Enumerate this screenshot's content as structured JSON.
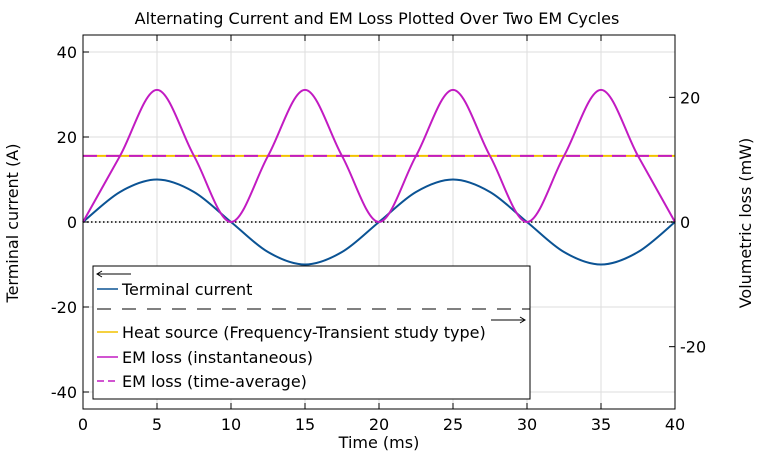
{
  "chart_data": {
    "type": "line",
    "title": "Alternating Current and EM Loss Plotted Over Two EM Cycles",
    "xlabel": "Time (ms)",
    "ylabel_left": "Terminal current (A)",
    "ylabel_right": "Volumetric loss (mW)",
    "xlim": [
      0,
      40
    ],
    "ylim_left": [
      -44,
      44
    ],
    "ylim_right": [
      -30,
      30
    ],
    "x_ticks": [
      0,
      5,
      10,
      15,
      20,
      25,
      30,
      35,
      40
    ],
    "y_ticks_left": [
      -40,
      -20,
      0,
      20,
      40
    ],
    "y_ticks_right": [
      -20,
      0,
      20
    ],
    "grid": true,
    "legend_position": "bottom-left",
    "series": [
      {
        "name": "Terminal current",
        "axis": "left",
        "color": "#0b5394",
        "style": "solid",
        "x": [
          0,
          2.5,
          5,
          7.5,
          10,
          12.5,
          15,
          17.5,
          20,
          22.5,
          25,
          27.5,
          30,
          32.5,
          35,
          37.5,
          40
        ],
        "values": [
          0,
          7.07,
          10,
          7.07,
          0,
          -7.07,
          -10,
          -7.07,
          0,
          7.07,
          10,
          7.07,
          0,
          -7.07,
          -10,
          -7.07,
          0
        ]
      },
      {
        "name": "Heat source (Frequency-Transient study type)",
        "axis": "right",
        "color": "#f2c200",
        "style": "solid",
        "x": [
          0,
          40
        ],
        "values": [
          10.6,
          10.6
        ]
      },
      {
        "name": "EM loss (instantaneous)",
        "axis": "right",
        "color": "#c21bc2",
        "style": "solid",
        "x": [
          0,
          2.5,
          5,
          7.5,
          10,
          12.5,
          15,
          17.5,
          20,
          22.5,
          25,
          27.5,
          30,
          32.5,
          35,
          37.5,
          40
        ],
        "values": [
          0,
          10.6,
          21.2,
          10.6,
          0,
          10.6,
          21.2,
          10.6,
          0,
          10.6,
          21.2,
          10.6,
          0,
          10.6,
          21.2,
          10.6,
          0
        ]
      },
      {
        "name": "EM loss (time-average)",
        "axis": "right",
        "color": "#c21bc2",
        "style": "dashed",
        "x": [
          0,
          40
        ],
        "values": [
          10.6,
          10.6
        ]
      }
    ]
  }
}
